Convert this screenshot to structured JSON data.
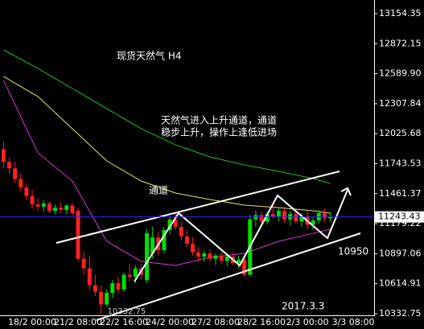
{
  "chart_data": {
    "type": "candlestick",
    "title": "现货天然气 H4",
    "annotations": [
      "天然气进入上升通道，通道",
      "稳步上升，操作上逢低进场",
      "通道",
      "10950",
      "2017.3.3"
    ],
    "categories": [
      null,
      null,
      null,
      null,
      null,
      "18/2 00:00",
      null,
      null,
      null,
      null,
      null,
      null,
      null,
      "21/2 08:00",
      null,
      null,
      null,
      null,
      null,
      null,
      null,
      "22/2 16:00",
      null,
      null,
      null,
      null,
      null,
      null,
      null,
      "24/2 00:00",
      null,
      null,
      null,
      null,
      null,
      null,
      null,
      "27/2 08:00",
      null,
      null,
      null,
      null,
      null,
      null,
      null,
      "28/2 16:00",
      null,
      null,
      null,
      null,
      null,
      null,
      null,
      "2/3 00:00",
      null,
      null,
      null,
      null,
      null,
      null,
      null,
      "3/3 08:00"
    ],
    "open": [
      11880,
      11760,
      11700,
      11600,
      11520,
      11440,
      11360,
      11340,
      11370,
      11300,
      11330,
      11310,
      11350,
      11300,
      10850,
      10760,
      10600,
      10540,
      10420,
      10530,
      10620,
      10560,
      10700,
      10680,
      10760,
      10650,
      10900,
      11050,
      10930,
      11120,
      11220,
      11150,
      11060,
      10990,
      10910,
      10870,
      10900,
      10850,
      10880,
      10830,
      10870,
      10810,
      10840,
      10700,
      11220,
      11260,
      11200,
      11270,
      11250,
      11300,
      11220,
      11270,
      11200,
      11250,
      11170,
      11210,
      11280,
      11230,
      null,
      null,
      null,
      null
    ],
    "high": [
      11950,
      11800,
      11760,
      11650,
      11560,
      11500,
      11420,
      11400,
      11390,
      11360,
      11380,
      11360,
      11380,
      11330,
      10920,
      10880,
      10700,
      10600,
      10560,
      10650,
      10680,
      10720,
      10800,
      10790,
      10800,
      11130,
      11150,
      11100,
      11150,
      11250,
      11280,
      11200,
      11120,
      11050,
      10960,
      10930,
      10940,
      10900,
      10920,
      10900,
      10910,
      10880,
      10880,
      11260,
      11300,
      11290,
      11290,
      11350,
      11330,
      11320,
      11300,
      11310,
      11280,
      11300,
      11240,
      11310,
      11320,
      11290,
      null,
      null,
      null,
      null
    ],
    "low": [
      11700,
      11650,
      11560,
      11480,
      11400,
      11320,
      11300,
      11290,
      11280,
      11270,
      11280,
      11270,
      11260,
      10820,
      10700,
      10560,
      10500,
      10332.75,
      10400,
      10480,
      10520,
      10540,
      10640,
      10620,
      10660,
      10620,
      10850,
      10880,
      10900,
      11080,
      11120,
      11020,
      10960,
      10880,
      10820,
      10820,
      10820,
      10790,
      10800,
      10780,
      10790,
      10760,
      10680,
      10690,
      11150,
      11180,
      11170,
      11230,
      11200,
      11190,
      11160,
      11180,
      11150,
      11130,
      11120,
      11180,
      11200,
      11200,
      null,
      null,
      null,
      null
    ],
    "close": [
      11760,
      11700,
      11600,
      11520,
      11440,
      11360,
      11340,
      11370,
      11300,
      11330,
      11310,
      11350,
      11280,
      10850,
      10760,
      10600,
      10540,
      10420,
      10530,
      10620,
      10560,
      10700,
      10680,
      10760,
      10700,
      11090,
      11050,
      10930,
      11120,
      11220,
      11150,
      11060,
      10990,
      10910,
      10870,
      10900,
      10850,
      10880,
      10830,
      10870,
      10810,
      10840,
      10700,
      11220,
      11260,
      11200,
      11270,
      11250,
      11300,
      11220,
      11270,
      11200,
      11250,
      11170,
      11210,
      11280,
      11230,
      11243.43,
      null,
      null,
      null,
      null
    ],
    "up_color": "#00e000",
    "down_color": "#ff2020",
    "lines": [
      {
        "color": "#18c818",
        "x": [
          0,
          6,
          12,
          18,
          24,
          30,
          36,
          42,
          48,
          54,
          57
        ],
        "values": [
          12814,
          12640,
          12451,
          12262,
          12073,
          11921,
          11808,
          11732,
          11672,
          11604,
          11558
        ]
      },
      {
        "color": "#e8e850",
        "x": [
          0,
          6,
          12,
          18,
          24,
          30,
          36,
          42,
          48,
          54,
          57
        ],
        "values": [
          12564,
          12375,
          12073,
          11770,
          11581,
          11468,
          11407,
          11354,
          11331,
          11301,
          11279
        ]
      },
      {
        "color": "#e030e0",
        "x": [
          0,
          6,
          12,
          18,
          24,
          30,
          36,
          42,
          48,
          54,
          57
        ],
        "values": [
          12527,
          11846,
          11581,
          11014,
          10825,
          10787,
          10863,
          10900,
          11014,
          11089,
          11127
        ]
      }
    ],
    "ylim": [
      10318,
      13283
    ],
    "yticks": [
      {
        "value": 13154.35,
        "label": "13154.35"
      },
      {
        "value": 12872.15,
        "label": "12872.15"
      },
      {
        "value": 12589.9,
        "label": "12589.90"
      },
      {
        "value": 12307.84,
        "label": "12307.84"
      },
      {
        "value": 12025.68,
        "label": "12025.68"
      },
      {
        "value": 11743.53,
        "label": "11743.53"
      },
      {
        "value": 11461.37,
        "label": "11461.37"
      },
      {
        "value": 11179.22,
        "label": "11179.22"
      },
      {
        "value": 10897.06,
        "label": "10897.06"
      },
      {
        "value": 10614.91,
        "label": "10614.91"
      },
      {
        "value": 10332.75,
        "label": "10332.75"
      }
    ],
    "current_price": {
      "value": 11243.43,
      "label": "11243.43"
    },
    "low_label": {
      "value": 10332.75,
      "label": "10332.75"
    }
  }
}
